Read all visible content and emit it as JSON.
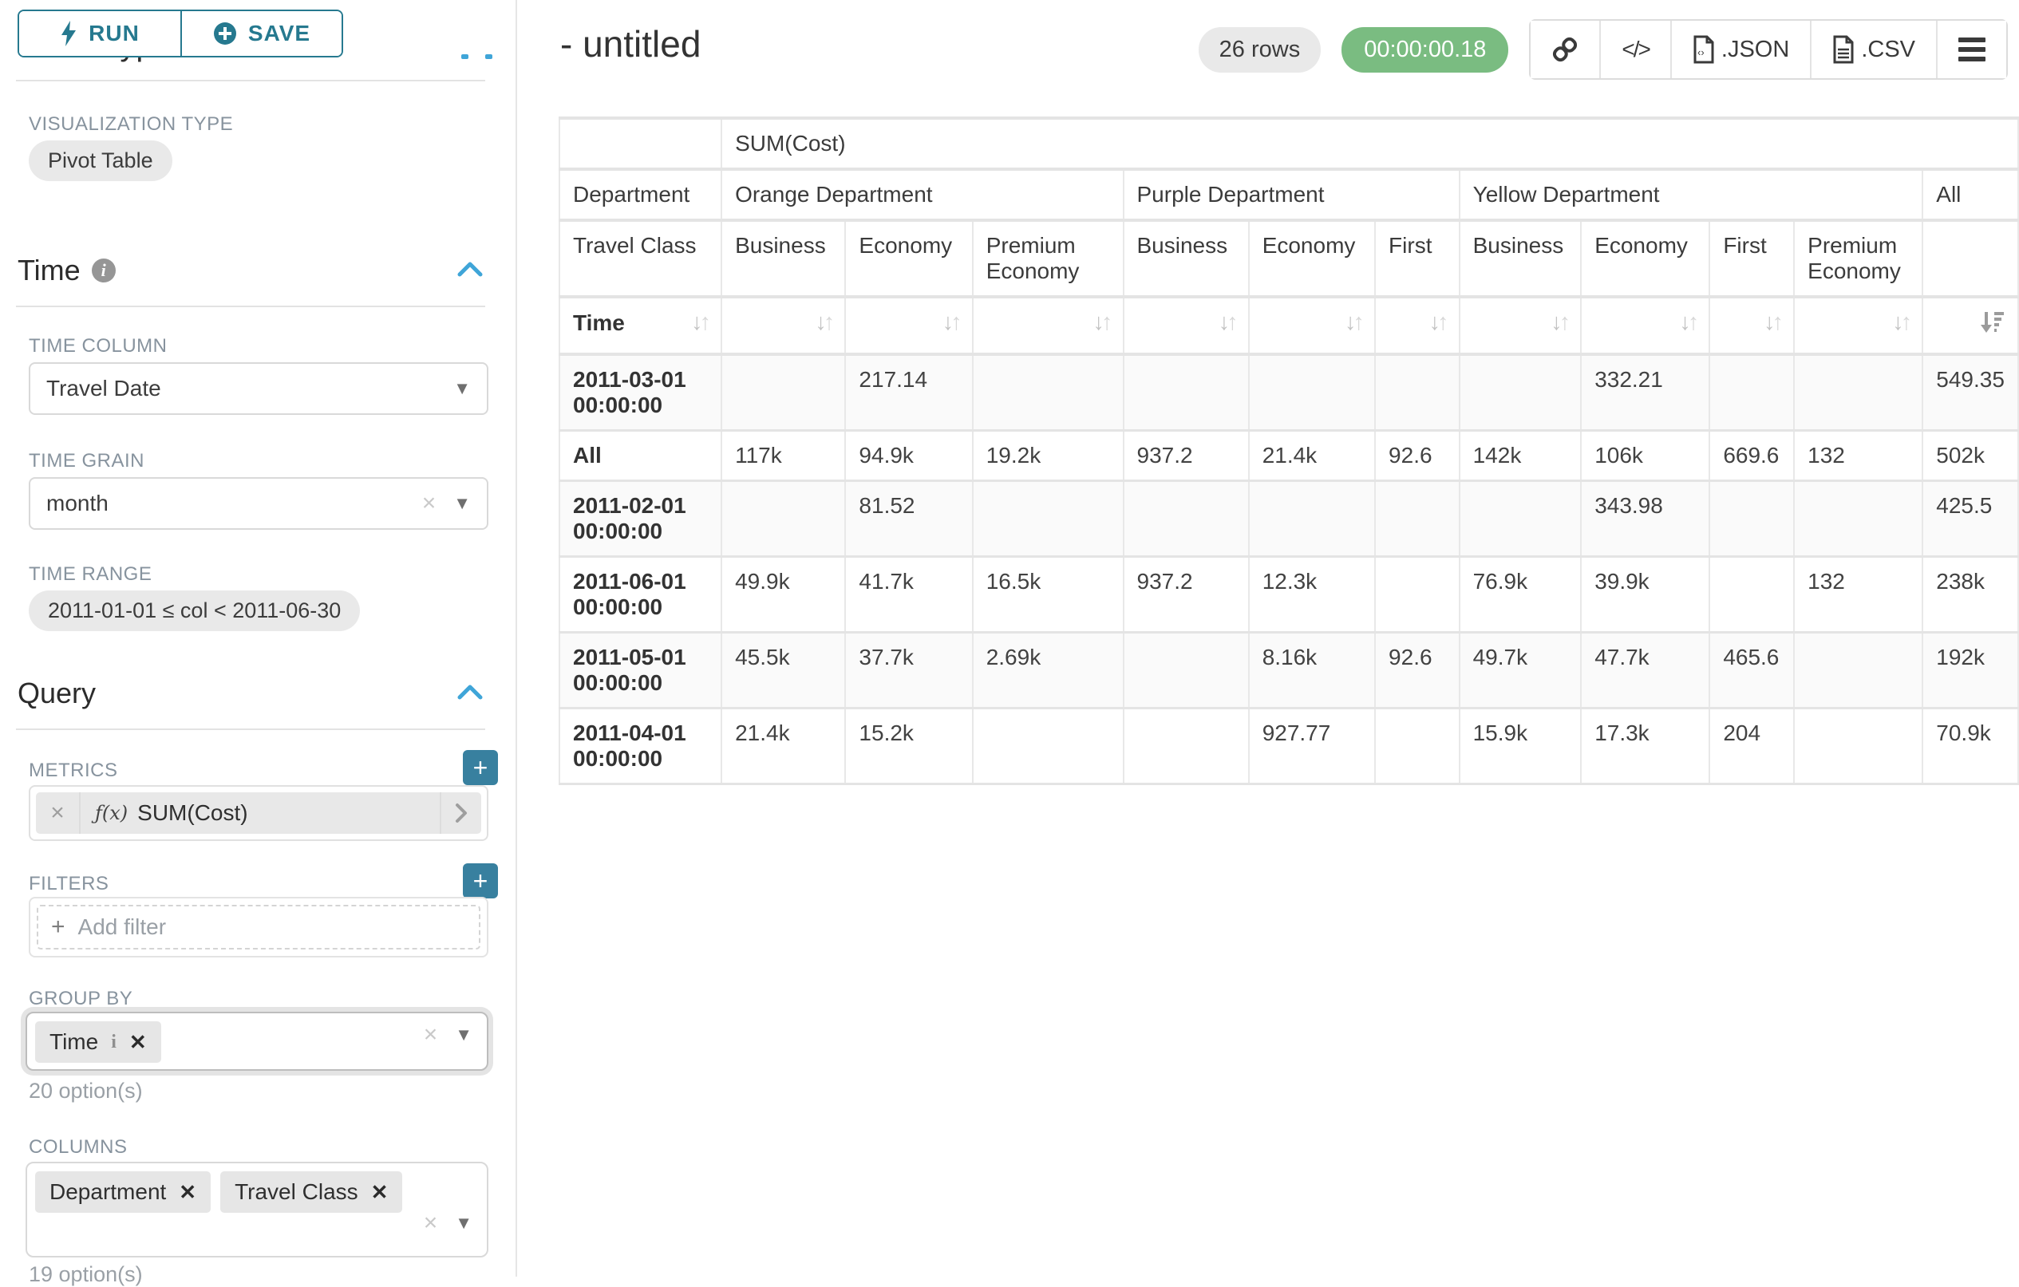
{
  "sidebar": {
    "run_label": "RUN",
    "save_label": "SAVE",
    "chart_type_heading": "Chart Type",
    "visualization_type_label": "VISUALIZATION TYPE",
    "visualization_type_value": "Pivot Table",
    "time": {
      "heading": "Time",
      "time_column_label": "TIME COLUMN",
      "time_column_value": "Travel Date",
      "time_grain_label": "TIME GRAIN",
      "time_grain_value": "month",
      "time_range_label": "TIME RANGE",
      "time_range_value": "2011-01-01 ≤ col < 2011-06-30"
    },
    "query": {
      "heading": "Query",
      "metrics_label": "METRICS",
      "metric_fx": "ƒ(x)",
      "metric_value": "SUM(Cost)",
      "filters_label": "FILTERS",
      "add_filter_label": "Add filter",
      "group_by_label": "GROUP BY",
      "group_by_values": [
        "Time"
      ],
      "group_by_option_count": "20 option(s)",
      "columns_label": "COLUMNS",
      "columns_values": [
        "Department",
        "Travel Class"
      ],
      "columns_option_count": "19 option(s)"
    }
  },
  "header": {
    "title": "- untitled",
    "row_count": "26 rows",
    "duration": "00:00:00.18",
    "json_label": ".JSON",
    "csv_label": ".CSV"
  },
  "colors": {
    "accent_teal": "#26798f",
    "plus_button_teal": "#38809f",
    "collapse_blue": "#3fa5d8",
    "timer_green": "#7abc81",
    "table_gridline": "#e4e4e4"
  },
  "pivot_table": {
    "metric_header": "SUM(Cost)",
    "row_dim_label": "Department",
    "row_dim2_label": "Travel Class",
    "time_label": "Time",
    "col_groups": [
      {
        "label": "Orange Department",
        "span": 3
      },
      {
        "label": "Purple Department",
        "span": 3
      },
      {
        "label": "Yellow Department",
        "span": 4
      },
      {
        "label": "All",
        "span": 1
      }
    ],
    "subcols": [
      "Business",
      "Economy",
      "Premium Economy",
      "Business",
      "Economy",
      "First",
      "Business",
      "Economy",
      "First",
      "Premium Economy",
      ""
    ],
    "rows": [
      {
        "label": "2011-03-01 00:00:00",
        "cells": [
          "",
          "217.14",
          "",
          "",
          "",
          "",
          "",
          "332.21",
          "",
          "",
          "549.35"
        ]
      },
      {
        "label": "All",
        "cells": [
          "117k",
          "94.9k",
          "19.2k",
          "937.2",
          "21.4k",
          "92.6",
          "142k",
          "106k",
          "669.6",
          "132",
          "502k"
        ]
      },
      {
        "label": "2011-02-01 00:00:00",
        "cells": [
          "",
          "81.52",
          "",
          "",
          "",
          "",
          "",
          "343.98",
          "",
          "",
          "425.5"
        ]
      },
      {
        "label": "2011-06-01 00:00:00",
        "cells": [
          "49.9k",
          "41.7k",
          "16.5k",
          "937.2",
          "12.3k",
          "",
          "76.9k",
          "39.9k",
          "",
          "132",
          "238k"
        ]
      },
      {
        "label": "2011-05-01 00:00:00",
        "cells": [
          "45.5k",
          "37.7k",
          "2.69k",
          "",
          "8.16k",
          "92.6",
          "49.7k",
          "47.7k",
          "465.6",
          "",
          "192k"
        ]
      },
      {
        "label": "2011-04-01 00:00:00",
        "cells": [
          "21.4k",
          "15.2k",
          "",
          "",
          "927.77",
          "",
          "15.9k",
          "17.3k",
          "204",
          "",
          "70.9k"
        ]
      }
    ]
  }
}
